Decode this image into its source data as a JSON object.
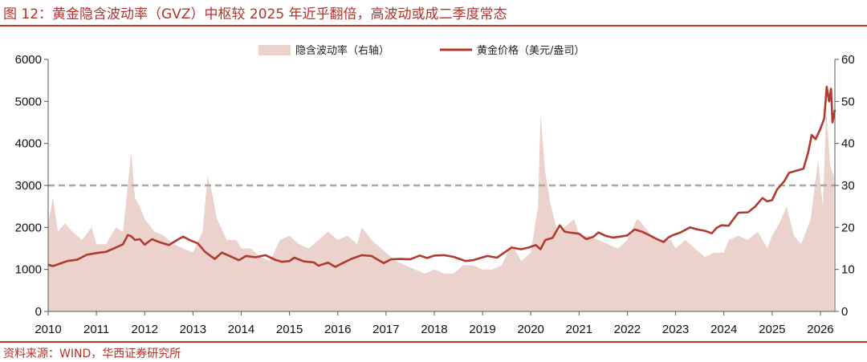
{
  "header": {
    "title": "图 12：黄金隐含波动率（GVZ）中枢较 2025 年近乎翻倍，高波动或成二季度常态"
  },
  "footer": {
    "source": "资料来源：WIND，华西证券研究所"
  },
  "colors": {
    "accent": "#c0392b",
    "gold_line": "#b03a2e",
    "vol_area": "#ecd2cc",
    "ref_line": "#a6a6a6"
  },
  "chart_data": {
    "type": "line",
    "title": "",
    "legend": {
      "placement": "top-center",
      "entries": [
        "隐含波动率（右轴）",
        "黄金价格（美元/盎司）"
      ]
    },
    "x_ticks": [
      "2010",
      "2011",
      "2012",
      "2013",
      "2014",
      "2015",
      "2016",
      "2017",
      "2018",
      "2019",
      "2020",
      "2021",
      "2022",
      "2023",
      "2024",
      "2025",
      "2026"
    ],
    "x_range": [
      2010.0,
      2026.3
    ],
    "y_left": {
      "range": [
        0,
        6000
      ],
      "ticks": [
        "0",
        "1000",
        "2000",
        "3000",
        "4000",
        "5000",
        "6000"
      ]
    },
    "y_right": {
      "range": [
        0,
        60
      ],
      "ticks": [
        "0",
        "10",
        "20",
        "30",
        "40",
        "50",
        "60"
      ]
    },
    "reference_line": {
      "axis": "right",
      "value": 30,
      "style": "dashed"
    },
    "series": [
      {
        "name": "隐含波动率（右轴）",
        "type": "area",
        "axis": "right",
        "points": [
          [
            2010.0,
            21
          ],
          [
            2010.1,
            27
          ],
          [
            2010.2,
            19
          ],
          [
            2010.35,
            21
          ],
          [
            2010.5,
            19
          ],
          [
            2010.7,
            17
          ],
          [
            2010.9,
            20
          ],
          [
            2011.0,
            16
          ],
          [
            2011.2,
            16
          ],
          [
            2011.4,
            20
          ],
          [
            2011.55,
            19
          ],
          [
            2011.65,
            30
          ],
          [
            2011.72,
            38
          ],
          [
            2011.8,
            27
          ],
          [
            2011.9,
            25
          ],
          [
            2012.0,
            22
          ],
          [
            2012.2,
            19
          ],
          [
            2012.4,
            18
          ],
          [
            2012.6,
            16
          ],
          [
            2012.8,
            15
          ],
          [
            2013.0,
            14
          ],
          [
            2013.2,
            19
          ],
          [
            2013.3,
            32
          ],
          [
            2013.38,
            29
          ],
          [
            2013.5,
            22
          ],
          [
            2013.7,
            17
          ],
          [
            2013.9,
            17
          ],
          [
            2014.0,
            15
          ],
          [
            2014.2,
            15
          ],
          [
            2014.4,
            13
          ],
          [
            2014.6,
            12
          ],
          [
            2014.8,
            17
          ],
          [
            2015.0,
            18
          ],
          [
            2015.2,
            16
          ],
          [
            2015.4,
            15
          ],
          [
            2015.6,
            17
          ],
          [
            2015.8,
            19
          ],
          [
            2016.0,
            17
          ],
          [
            2016.2,
            18
          ],
          [
            2016.4,
            16
          ],
          [
            2016.5,
            20
          ],
          [
            2016.7,
            17
          ],
          [
            2016.9,
            15
          ],
          [
            2017.0,
            14
          ],
          [
            2017.2,
            12
          ],
          [
            2017.4,
            11
          ],
          [
            2017.6,
            10
          ],
          [
            2017.8,
            9
          ],
          [
            2018.0,
            10
          ],
          [
            2018.2,
            9
          ],
          [
            2018.4,
            9
          ],
          [
            2018.6,
            11
          ],
          [
            2018.8,
            11
          ],
          [
            2019.0,
            10
          ],
          [
            2019.2,
            10
          ],
          [
            2019.4,
            11
          ],
          [
            2019.6,
            16
          ],
          [
            2019.8,
            12
          ],
          [
            2020.0,
            14
          ],
          [
            2020.15,
            25
          ],
          [
            2020.2,
            47
          ],
          [
            2020.3,
            33
          ],
          [
            2020.4,
            26
          ],
          [
            2020.55,
            19
          ],
          [
            2020.7,
            20
          ],
          [
            2020.9,
            22
          ],
          [
            2021.0,
            18
          ],
          [
            2021.2,
            18
          ],
          [
            2021.4,
            17
          ],
          [
            2021.6,
            16
          ],
          [
            2021.8,
            15
          ],
          [
            2022.0,
            17
          ],
          [
            2022.2,
            22
          ],
          [
            2022.3,
            21
          ],
          [
            2022.5,
            18
          ],
          [
            2022.7,
            17
          ],
          [
            2022.9,
            17
          ],
          [
            2023.0,
            15
          ],
          [
            2023.2,
            17
          ],
          [
            2023.4,
            15
          ],
          [
            2023.6,
            13
          ],
          [
            2023.8,
            14
          ],
          [
            2024.0,
            14
          ],
          [
            2024.1,
            17
          ],
          [
            2024.3,
            18
          ],
          [
            2024.5,
            17
          ],
          [
            2024.7,
            19
          ],
          [
            2024.9,
            15
          ],
          [
            2025.0,
            18
          ],
          [
            2025.15,
            21
          ],
          [
            2025.3,
            25
          ],
          [
            2025.45,
            18
          ],
          [
            2025.6,
            16
          ],
          [
            2025.8,
            22
          ],
          [
            2025.95,
            36
          ],
          [
            2026.05,
            25
          ],
          [
            2026.12,
            48
          ],
          [
            2026.2,
            35
          ],
          [
            2026.28,
            32
          ]
        ]
      },
      {
        "name": "黄金价格（美元/盎司）",
        "type": "line",
        "axis": "left",
        "points": [
          [
            2010.0,
            1110
          ],
          [
            2010.1,
            1080
          ],
          [
            2010.2,
            1120
          ],
          [
            2010.4,
            1200
          ],
          [
            2010.6,
            1230
          ],
          [
            2010.8,
            1350
          ],
          [
            2011.0,
            1390
          ],
          [
            2011.2,
            1420
          ],
          [
            2011.4,
            1520
          ],
          [
            2011.55,
            1600
          ],
          [
            2011.65,
            1820
          ],
          [
            2011.72,
            1790
          ],
          [
            2011.8,
            1700
          ],
          [
            2011.9,
            1720
          ],
          [
            2012.0,
            1590
          ],
          [
            2012.15,
            1720
          ],
          [
            2012.3,
            1650
          ],
          [
            2012.5,
            1580
          ],
          [
            2012.7,
            1720
          ],
          [
            2012.8,
            1780
          ],
          [
            2012.95,
            1690
          ],
          [
            2013.1,
            1620
          ],
          [
            2013.25,
            1420
          ],
          [
            2013.45,
            1250
          ],
          [
            2013.6,
            1400
          ],
          [
            2013.8,
            1300
          ],
          [
            2013.95,
            1220
          ],
          [
            2014.1,
            1320
          ],
          [
            2014.3,
            1290
          ],
          [
            2014.5,
            1340
          ],
          [
            2014.7,
            1230
          ],
          [
            2014.85,
            1180
          ],
          [
            2015.0,
            1200
          ],
          [
            2015.1,
            1280
          ],
          [
            2015.3,
            1190
          ],
          [
            2015.5,
            1170
          ],
          [
            2015.6,
            1090
          ],
          [
            2015.8,
            1160
          ],
          [
            2015.95,
            1060
          ],
          [
            2016.1,
            1150
          ],
          [
            2016.3,
            1260
          ],
          [
            2016.5,
            1340
          ],
          [
            2016.7,
            1320
          ],
          [
            2016.85,
            1220
          ],
          [
            2016.95,
            1150
          ],
          [
            2017.1,
            1240
          ],
          [
            2017.3,
            1250
          ],
          [
            2017.5,
            1240
          ],
          [
            2017.7,
            1330
          ],
          [
            2017.85,
            1270
          ],
          [
            2018.0,
            1330
          ],
          [
            2018.2,
            1340
          ],
          [
            2018.4,
            1300
          ],
          [
            2018.55,
            1240
          ],
          [
            2018.65,
            1200
          ],
          [
            2018.8,
            1220
          ],
          [
            2018.95,
            1270
          ],
          [
            2019.1,
            1320
          ],
          [
            2019.3,
            1280
          ],
          [
            2019.45,
            1400
          ],
          [
            2019.6,
            1520
          ],
          [
            2019.8,
            1480
          ],
          [
            2019.95,
            1520
          ],
          [
            2020.1,
            1580
          ],
          [
            2020.2,
            1480
          ],
          [
            2020.3,
            1700
          ],
          [
            2020.45,
            1750
          ],
          [
            2020.6,
            2050
          ],
          [
            2020.7,
            1900
          ],
          [
            2020.85,
            1870
          ],
          [
            2021.0,
            1850
          ],
          [
            2021.15,
            1720
          ],
          [
            2021.3,
            1780
          ],
          [
            2021.4,
            1880
          ],
          [
            2021.55,
            1800
          ],
          [
            2021.7,
            1760
          ],
          [
            2021.85,
            1780
          ],
          [
            2022.0,
            1810
          ],
          [
            2022.15,
            1950
          ],
          [
            2022.3,
            1900
          ],
          [
            2022.45,
            1820
          ],
          [
            2022.6,
            1730
          ],
          [
            2022.75,
            1650
          ],
          [
            2022.85,
            1760
          ],
          [
            2022.95,
            1820
          ],
          [
            2023.1,
            1880
          ],
          [
            2023.3,
            2000
          ],
          [
            2023.45,
            1950
          ],
          [
            2023.6,
            1920
          ],
          [
            2023.75,
            1860
          ],
          [
            2023.85,
            1990
          ],
          [
            2023.95,
            2050
          ],
          [
            2024.1,
            2040
          ],
          [
            2024.2,
            2200
          ],
          [
            2024.3,
            2350
          ],
          [
            2024.5,
            2360
          ],
          [
            2024.65,
            2500
          ],
          [
            2024.8,
            2700
          ],
          [
            2024.9,
            2620
          ],
          [
            2025.0,
            2650
          ],
          [
            2025.1,
            2900
          ],
          [
            2025.25,
            3100
          ],
          [
            2025.35,
            3300
          ],
          [
            2025.5,
            3350
          ],
          [
            2025.65,
            3400
          ],
          [
            2025.75,
            3800
          ],
          [
            2025.82,
            4200
          ],
          [
            2025.9,
            4100
          ],
          [
            2026.0,
            4350
          ],
          [
            2026.08,
            4600
          ],
          [
            2026.13,
            5350
          ],
          [
            2026.18,
            5000
          ],
          [
            2026.22,
            5300
          ],
          [
            2026.25,
            4500
          ],
          [
            2026.3,
            4800
          ]
        ]
      }
    ]
  }
}
